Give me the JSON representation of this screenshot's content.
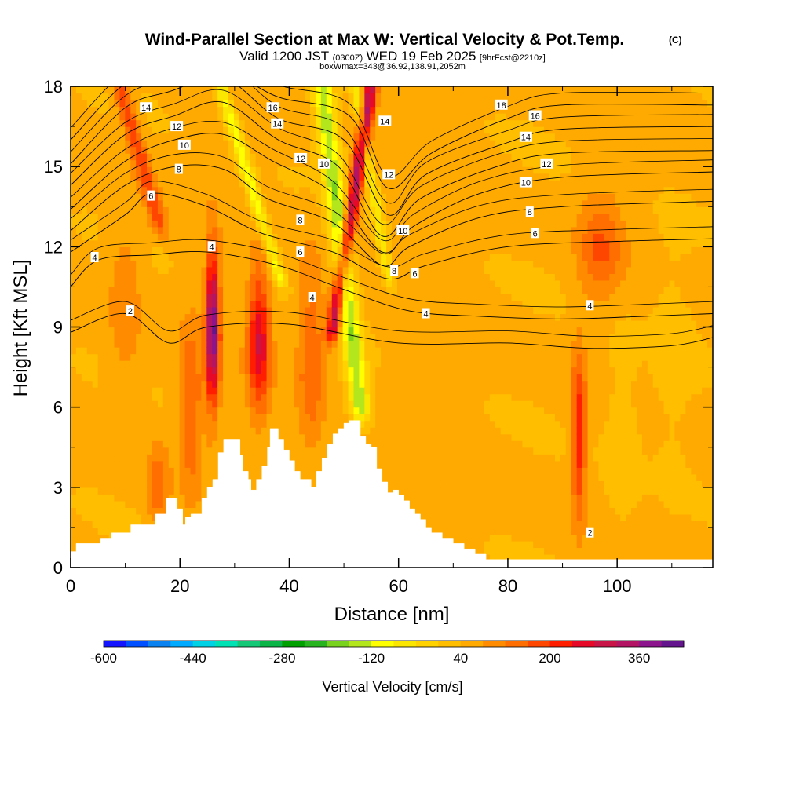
{
  "header": {
    "title": "Wind-Parallel Section at Max W: Vertical Velocity & Pot.Temp.",
    "copyright": "(C)",
    "valid_prefix": "Valid 1200 JST",
    "valid_utc": "(0300Z)",
    "valid_date": "WED 19 Feb 2025",
    "forecast_tag": "[9hrFcst@2210z]",
    "box_info": "boxWmax=343@36.92,138.91,2052m"
  },
  "chart_data": {
    "type": "heatmap",
    "xlabel": "Distance [nm]",
    "ylabel": "Height [Kft MSL]",
    "xlim": [
      0,
      117.5
    ],
    "ylim": [
      0,
      18
    ],
    "x_ticks": [
      0,
      20,
      40,
      60,
      80,
      100
    ],
    "y_ticks": [
      0,
      3,
      6,
      9,
      12,
      15,
      18
    ],
    "colorbar": {
      "label": "Vertical Velocity [cm/s]",
      "tick_labels": [
        -600,
        -440,
        -280,
        -120,
        40,
        200,
        360
      ],
      "range": [
        -600,
        440
      ],
      "colors": [
        "#1414ff",
        "#0050ff",
        "#0a82f0",
        "#00aaff",
        "#00d2e6",
        "#00e1b4",
        "#14c878",
        "#0ab446",
        "#00a000",
        "#28b41e",
        "#78d21e",
        "#b4e61e",
        "#ffff00",
        "#fae600",
        "#ffd200",
        "#ffbe00",
        "#ffaa00",
        "#ff8c00",
        "#ff6e00",
        "#ff4600",
        "#ff1e00",
        "#e60a28",
        "#c81446",
        "#b41464",
        "#8c148c",
        "#64148c"
      ]
    },
    "velocity_features": [
      {
        "x": 26.0,
        "z_center": 9.0,
        "half_width_x": 1.2,
        "half_height": 2.8,
        "w": 380
      },
      {
        "x": 34.5,
        "z_center": 8.5,
        "half_width_x": 2.0,
        "half_height": 2.6,
        "w": 230
      },
      {
        "x": 22.0,
        "z_center": 6.0,
        "half_width_x": 2.0,
        "half_height": 3.0,
        "w": 120
      },
      {
        "x": 44.0,
        "z_center": 8.0,
        "half_width_x": 2.5,
        "half_height": 3.5,
        "w": 110
      },
      {
        "x": 93.0,
        "z_center": 5.0,
        "half_width_x": 1.3,
        "half_height": 3.0,
        "w": 190
      },
      {
        "x": 16.0,
        "z_center": 3.0,
        "half_width_x": 2.0,
        "half_height": 1.5,
        "w": 100
      },
      {
        "x": 101.0,
        "z_center": 5.0,
        "half_width_x": 3.0,
        "half_height": 4.0,
        "w": -40
      },
      {
        "x": 110.0,
        "z_center": 8.0,
        "half_width_x": 4.0,
        "half_height": 5.0,
        "w": -30
      },
      {
        "x": 97.0,
        "z_center": 12.0,
        "half_width_x": 4.0,
        "half_height": 2.0,
        "w": 110
      },
      {
        "x": 10.0,
        "z_center": 10.0,
        "half_width_x": 3.0,
        "half_height": 4.0,
        "w": 60
      }
    ],
    "slanted_features": [
      {
        "x_top": 46.0,
        "x_bottom": 53.0,
        "z_top": 18.0,
        "z_bottom": 6.0,
        "half_width_x": 1.8,
        "w": -200
      },
      {
        "x_top": 55.0,
        "x_bottom": 48.0,
        "z_top": 18.0,
        "z_bottom": 9.0,
        "half_width_x": 1.2,
        "w": 290
      },
      {
        "x_top": 27.5,
        "x_bottom": 38.0,
        "z_top": 18.0,
        "z_bottom": 11.0,
        "half_width_x": 1.2,
        "w": -150
      },
      {
        "x_top": 52.0,
        "x_bottom": 58.0,
        "z_top": 18.0,
        "z_bottom": 11.0,
        "half_width_x": 1.0,
        "w": -120
      },
      {
        "x_top": 9.0,
        "x_bottom": 16.0,
        "z_top": 18.0,
        "z_bottom": 13.0,
        "half_width_x": 1.5,
        "w": 140
      }
    ],
    "terrain": {
      "x": [
        0,
        1,
        5.5,
        7.5,
        11,
        15.5,
        17.5,
        19.5,
        20.5,
        21,
        22,
        24,
        25,
        26,
        27,
        28,
        29.5,
        31,
        31.5,
        32.5,
        33,
        34,
        35,
        36,
        36.5,
        37.5,
        38,
        39,
        40,
        41,
        42,
        43,
        44,
        45,
        46,
        47,
        48,
        49,
        50,
        51,
        52,
        53,
        54,
        55,
        56,
        57,
        58,
        59,
        60,
        61,
        62,
        63,
        64,
        65,
        66,
        68,
        70,
        72,
        74,
        76,
        78,
        80,
        90,
        100,
        117.5
      ],
      "z": [
        0.6,
        0.9,
        1.1,
        1.3,
        1.6,
        2.0,
        2.6,
        2.2,
        1.6,
        1.9,
        2.0,
        2.6,
        3.0,
        3.3,
        4.3,
        4.8,
        4.8,
        4.2,
        3.6,
        3.3,
        2.9,
        3.3,
        3.8,
        4.5,
        5.2,
        5.2,
        4.8,
        4.4,
        4.0,
        3.6,
        3.3,
        3.3,
        3.0,
        3.6,
        4.1,
        4.6,
        5.0,
        5.2,
        5.4,
        5.5,
        5.5,
        4.9,
        4.6,
        4.5,
        3.7,
        3.2,
        2.8,
        2.9,
        2.7,
        2.5,
        2.2,
        2.0,
        1.8,
        1.5,
        1.3,
        1.1,
        0.9,
        0.7,
        0.5,
        0.3,
        0.3,
        0.3,
        0.3,
        0.3,
        0.3
      ]
    },
    "isentropes": [
      {
        "label": "2",
        "x": [
          0,
          10,
          18,
          25,
          40,
          60,
          80,
          95,
          110,
          117.5
        ],
        "z": [
          8.8,
          9.5,
          8.4,
          9.0,
          9.1,
          8.4,
          8.4,
          8.2,
          8.3,
          8.6
        ]
      },
      {
        "label": "4",
        "x": [
          0,
          5,
          15,
          25,
          38,
          50,
          62,
          75,
          90,
          105,
          117.5
        ],
        "z": [
          10.5,
          11.5,
          11.7,
          11.8,
          11.3,
          10.4,
          9.6,
          9.4,
          9.3,
          9.4,
          9.5
        ]
      },
      {
        "label": "6",
        "x": [
          0,
          10,
          15,
          25,
          35,
          48,
          58,
          65,
          80,
          100,
          117.5
        ],
        "z": [
          11.8,
          13.2,
          14.0,
          13.5,
          12.5,
          11.8,
          10.8,
          11.3,
          12.0,
          12.2,
          12.3
        ]
      },
      {
        "label": "8",
        "x": [
          0,
          10,
          19,
          28,
          36,
          48,
          57,
          62,
          75,
          90,
          117.5
        ],
        "z": [
          12.6,
          14.3,
          15.0,
          14.9,
          13.8,
          12.9,
          11.3,
          12.0,
          13.1,
          13.5,
          13.7
        ]
      },
      {
        "label": "10",
        "x": [
          0,
          10,
          19,
          28,
          37,
          48,
          57,
          63,
          75,
          90,
          117.5
        ],
        "z": [
          13.4,
          15.2,
          16.0,
          16.2,
          15.2,
          14.0,
          11.8,
          12.8,
          14.0,
          14.6,
          14.8
        ]
      },
      {
        "label": "12",
        "x": [
          0,
          10,
          19,
          28,
          38,
          49,
          57,
          64,
          78,
          90,
          117.5
        ],
        "z": [
          14.3,
          16.2,
          16.9,
          17.4,
          16.0,
          15.0,
          12.4,
          13.8,
          15.0,
          15.5,
          15.6
        ]
      },
      {
        "label": "14",
        "x": [
          0,
          10,
          18,
          28,
          38,
          50,
          58,
          65,
          80,
          90,
          117.5
        ],
        "z": [
          15.1,
          17.2,
          17.8,
          18.3,
          16.8,
          16.0,
          13.2,
          14.7,
          15.9,
          16.4,
          16.5
        ]
      },
      {
        "label": "16",
        "x": [
          0,
          10,
          18,
          28,
          38,
          51,
          58,
          66,
          80,
          90,
          117.5
        ],
        "z": [
          16.0,
          18.1,
          18.4,
          18.6,
          17.6,
          16.9,
          14.2,
          15.5,
          16.8,
          17.3,
          17.3
        ]
      }
    ],
    "contour_labels": [
      {
        "text": "14",
        "x": 13.8,
        "y": 17.2
      },
      {
        "text": "12",
        "x": 19.4,
        "y": 16.5
      },
      {
        "text": "10",
        "x": 20.8,
        "y": 15.8
      },
      {
        "text": "8",
        "x": 19.8,
        "y": 14.9
      },
      {
        "text": "6",
        "x": 14.7,
        "y": 13.9
      },
      {
        "text": "4",
        "x": 4.4,
        "y": 11.6
      },
      {
        "text": "4",
        "x": 25.8,
        "y": 12.0
      },
      {
        "text": "2",
        "x": 10.9,
        "y": 9.6
      },
      {
        "text": "16",
        "x": 37.0,
        "y": 17.2
      },
      {
        "text": "14",
        "x": 37.8,
        "y": 16.6
      },
      {
        "text": "12",
        "x": 42.1,
        "y": 15.3
      },
      {
        "text": "10",
        "x": 46.4,
        "y": 15.1
      },
      {
        "text": "8",
        "x": 42.0,
        "y": 13.0
      },
      {
        "text": "6",
        "x": 42.0,
        "y": 11.8
      },
      {
        "text": "4",
        "x": 44.2,
        "y": 10.1
      },
      {
        "text": "14",
        "x": 57.5,
        "y": 16.7
      },
      {
        "text": "12",
        "x": 58.2,
        "y": 14.7
      },
      {
        "text": "10",
        "x": 60.8,
        "y": 12.6
      },
      {
        "text": "8",
        "x": 59.2,
        "y": 11.1
      },
      {
        "text": "6",
        "x": 63.0,
        "y": 11.0
      },
      {
        "text": "4",
        "x": 65.0,
        "y": 9.5
      },
      {
        "text": "18",
        "x": 78.8,
        "y": 17.3
      },
      {
        "text": "16",
        "x": 85.0,
        "y": 16.9
      },
      {
        "text": "14",
        "x": 83.3,
        "y": 16.1
      },
      {
        "text": "12",
        "x": 87.1,
        "y": 15.1
      },
      {
        "text": "10",
        "x": 83.3,
        "y": 14.4
      },
      {
        "text": "8",
        "x": 84.0,
        "y": 13.3
      },
      {
        "text": "6",
        "x": 85.0,
        "y": 12.5
      },
      {
        "text": "4",
        "x": 95.0,
        "y": 9.8
      },
      {
        "text": "2",
        "x": 95.0,
        "y": 1.3
      }
    ]
  }
}
